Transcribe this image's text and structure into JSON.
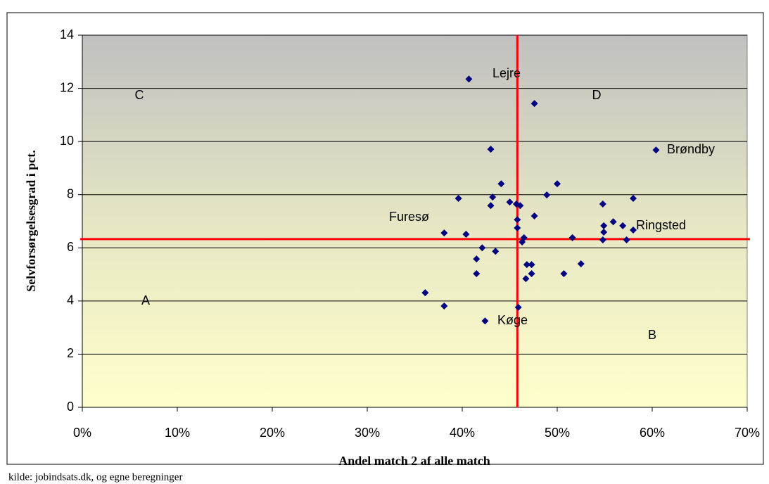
{
  "chart_data": {
    "type": "scatter",
    "x_label": "Andel match 2 af alle match",
    "y_label": "Selvforsørgelsesgrad i pct.",
    "source": "kilde: jobindsats.dk, og egne beregninger",
    "color": "#000080",
    "x": [
      40.7,
      47.6,
      60.4,
      43.0,
      39.6,
      43.0,
      44.1,
      43.2,
      50.0,
      48.9,
      45.0,
      45.7,
      46.1,
      47.6,
      45.8,
      45.8,
      54.8,
      58.0,
      55.9,
      54.9,
      56.9,
      58.0,
      54.8,
      54.9,
      57.3,
      51.6,
      46.5,
      46.3,
      38.1,
      40.4,
      42.1,
      43.5,
      41.5,
      41.5,
      38.1,
      36.1,
      42.4,
      46.8,
      47.3,
      47.3,
      46.7,
      50.7,
      52.5,
      45.9
    ],
    "values": [
      12.35,
      11.43,
      9.68,
      9.71,
      7.86,
      7.59,
      8.41,
      7.91,
      8.41,
      7.99,
      7.72,
      7.65,
      7.59,
      7.2,
      7.06,
      6.75,
      7.65,
      7.86,
      6.98,
      6.83,
      6.83,
      6.67,
      6.3,
      6.59,
      6.3,
      6.38,
      6.38,
      6.22,
      6.56,
      6.51,
      6.0,
      5.87,
      5.58,
      5.03,
      3.81,
      4.31,
      3.25,
      5.37,
      5.37,
      5.03,
      4.84,
      5.03,
      5.4,
      3.76
    ],
    "xlim": [
      0,
      70
    ],
    "ylim": [
      0,
      14
    ],
    "xticks": [
      {
        "value": 0,
        "label": "0%"
      },
      {
        "value": 10,
        "label": "10%"
      },
      {
        "value": 20,
        "label": "20%"
      },
      {
        "value": 30,
        "label": "30%"
      },
      {
        "value": 40,
        "label": "40%"
      },
      {
        "value": 50,
        "label": "50%"
      },
      {
        "value": 60,
        "label": "60%"
      },
      {
        "value": 70,
        "label": "70%"
      }
    ],
    "yticks": [
      0,
      2,
      4,
      6,
      8,
      10,
      12,
      14
    ],
    "grid": true,
    "reference_lines": {
      "x": 45.8,
      "y": 6.33,
      "color": "#ff0000"
    },
    "annotations": [
      "Lejre",
      "Brøndby",
      "Furesø",
      "Ringsted",
      "Køge"
    ],
    "quadrant_labels": [
      "A",
      "B",
      "C",
      "D"
    ]
  }
}
